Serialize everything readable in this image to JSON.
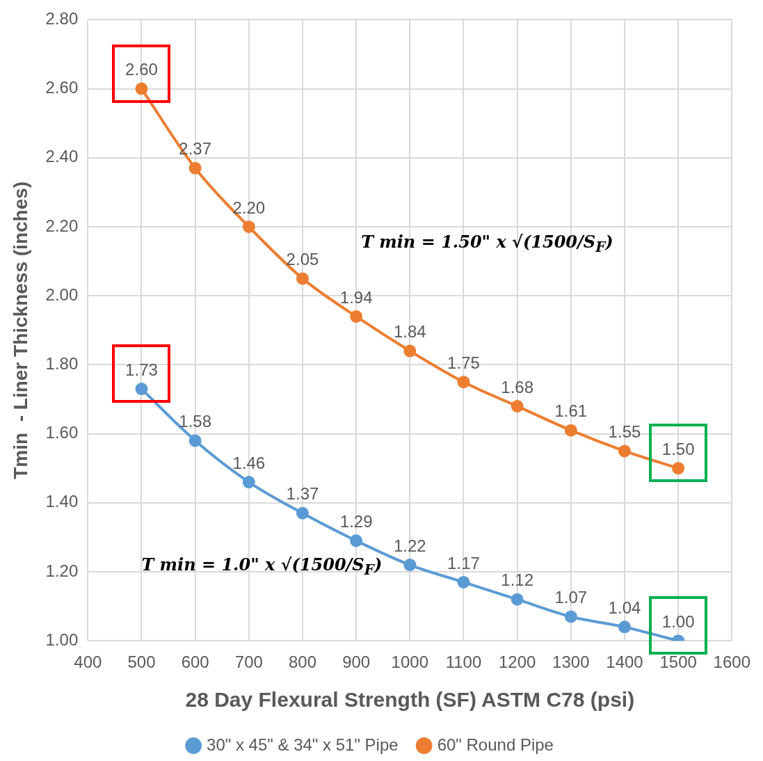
{
  "chart_data": {
    "type": "line",
    "xlabel": "28 Day Flexural Strength (SF) ASTM C78 (psi)",
    "ylabel": "Tmin  - Liner Thickness (inches)",
    "x": [
      500,
      600,
      700,
      800,
      900,
      1000,
      1100,
      1200,
      1300,
      1400,
      1500
    ],
    "series": [
      {
        "name": "30\" x 45\" & 34\" x 51\" Pipe",
        "color": "#5b9bd5",
        "values": [
          1.73,
          1.58,
          1.46,
          1.37,
          1.29,
          1.22,
          1.17,
          1.12,
          1.07,
          1.04,
          1.0
        ],
        "value_labels": [
          "1.73",
          "1.58",
          "1.46",
          "1.37",
          "1.29",
          "1.22",
          "1.17",
          "1.12",
          "1.07",
          "1.04",
          "1.00"
        ]
      },
      {
        "name": "60\" Round Pipe",
        "color": "#ed7d31",
        "values": [
          2.6,
          2.37,
          2.2,
          2.05,
          1.94,
          1.84,
          1.75,
          1.68,
          1.61,
          1.55,
          1.5
        ],
        "value_labels": [
          "2.60",
          "2.37",
          "2.20",
          "2.05",
          "1.94",
          "1.84",
          "1.75",
          "1.68",
          "1.61",
          "1.55",
          "1.50"
        ]
      }
    ],
    "xlim": [
      400,
      1600
    ],
    "xticks": [
      400,
      500,
      600,
      700,
      800,
      900,
      1000,
      1100,
      1200,
      1300,
      1400,
      1500,
      1600
    ],
    "ylim": [
      1,
      2.8
    ],
    "yticks": [
      {
        "value": 1,
        "label": "1.00"
      },
      {
        "value": 1.2,
        "label": "1.20"
      },
      {
        "value": 1.4,
        "label": "1.40"
      },
      {
        "value": 1.6,
        "label": "1.60"
      },
      {
        "value": 1.8,
        "label": "1.80"
      },
      {
        "value": 2,
        "label": "2.00"
      },
      {
        "value": 2.2,
        "label": "2.20"
      },
      {
        "value": 2.4,
        "label": "2.40"
      },
      {
        "value": 2.6,
        "label": "2.60"
      },
      {
        "value": 2.8,
        "label": "2.80"
      }
    ],
    "annotations": [
      "T min = 1.0\" x √(1500/S$_{F}$)",
      "T min = 1.50\" x √(1500/S$_{F}$)"
    ],
    "grid": true,
    "legend": "bottom",
    "marker": "circle",
    "line_style": "solid"
  }
}
